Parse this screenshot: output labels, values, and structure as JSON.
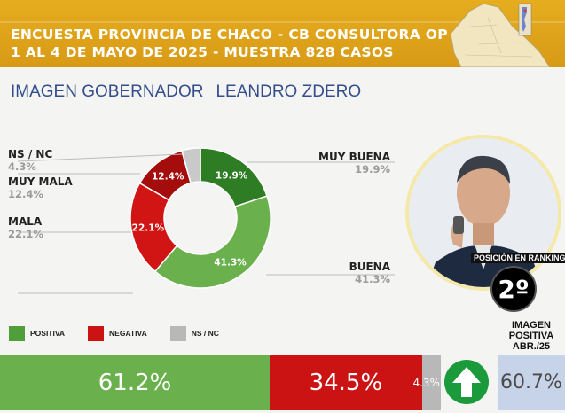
{
  "header": {
    "title_line1": "ENCUESTA PROVINCIA DE CHACO - CB CONSULTORA OP",
    "title_line2": "1 AL 4 DE MAYO DE 2025 - MUESTRA 828 CASOS",
    "background": "#dca21a"
  },
  "subtitle": {
    "part1": "IMAGEN GOBERNADOR",
    "part2": "LEANDRO ZDERO"
  },
  "chart_data": [
    {
      "type": "pie",
      "title": "",
      "categories": [
        "MUY BUENA",
        "BUENA",
        "MALA",
        "MUY MALA",
        "NS / NC"
      ],
      "values": [
        19.9,
        41.3,
        22.1,
        12.4,
        4.3
      ],
      "labels": [
        "19.9%",
        "41.3%",
        "22.1%",
        "12.4%",
        "4.3%"
      ],
      "colors": [
        "#2e7d24",
        "#6ab04c",
        "#d11414",
        "#a50d0d",
        "#c9c9c9"
      ],
      "donut": true
    },
    {
      "type": "bar",
      "stacked": true,
      "orientation": "horizontal",
      "categories": [
        "POSITIVA",
        "NEGATIVA",
        "NS / NC"
      ],
      "values": [
        61.2,
        34.5,
        4.3
      ],
      "labels": [
        "61.2%",
        "34.5%",
        "4.3%"
      ],
      "colors": [
        "#6ab04c",
        "#cc1313",
        "#b8b8b8"
      ]
    }
  ],
  "ranking": {
    "label": "POSICIÓN EN RANKING",
    "value": "2º"
  },
  "previous": {
    "label_line1": "IMAGEN",
    "label_line2": "POSITIVA",
    "label_line3": "ABR./25",
    "value": "60.7%",
    "trend": "up"
  },
  "legend": [
    {
      "label": "POSITIVA",
      "color": "#4f9e3a"
    },
    {
      "label": "NEGATIVA",
      "color": "#cc1313"
    },
    {
      "label": "NS / NC",
      "color": "#b8b8b8"
    }
  ]
}
